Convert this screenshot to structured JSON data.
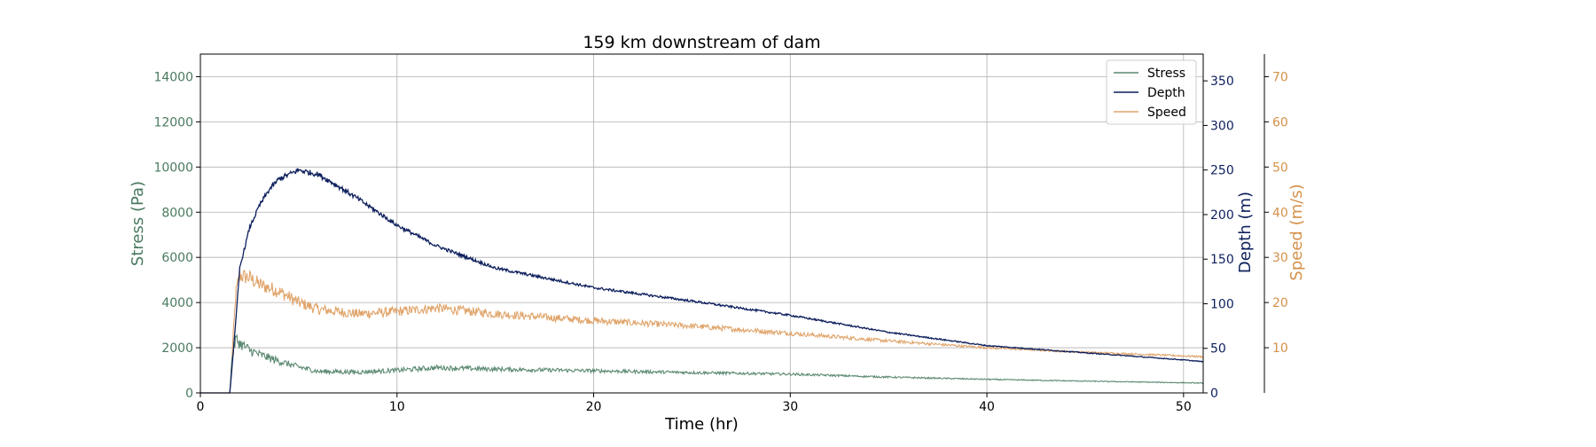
{
  "chart_data": {
    "type": "line",
    "title": "159 km downstream of dam",
    "xlabel": "Time (hr)",
    "xlim": [
      0,
      51
    ],
    "xticks": [
      0,
      10,
      20,
      30,
      40,
      50
    ],
    "grid": true,
    "legend_position": "top-right",
    "axes": {
      "stress": {
        "label": "Stress (Pa)",
        "lim": [
          0,
          15000
        ],
        "ticks": [
          0,
          2000,
          4000,
          6000,
          8000,
          10000,
          12000,
          14000
        ],
        "color": "#4a7a5f",
        "side": "left"
      },
      "depth": {
        "label": "Depth (m)",
        "lim": [
          0,
          380
        ],
        "ticks": [
          0,
          50,
          100,
          150,
          200,
          250,
          300,
          350
        ],
        "color": "#0d1f5c",
        "side": "right"
      },
      "speed": {
        "label": "Speed (m/s)",
        "lim": [
          0,
          75
        ],
        "ticks": [
          10,
          20,
          30,
          40,
          50,
          60,
          70
        ],
        "color": "#d4914a",
        "side": "right-outer"
      }
    },
    "series": [
      {
        "name": "Stress",
        "axis": "stress",
        "color": "#5c8a72",
        "x": [
          0,
          1.5,
          1.6,
          1.8,
          2,
          2.5,
          3,
          4,
          5,
          6,
          8,
          10,
          12,
          15,
          20,
          25,
          30,
          35,
          40,
          45,
          50,
          51
        ],
        "y": [
          0,
          0,
          1500,
          2400,
          2200,
          1900,
          1700,
          1400,
          1150,
          950,
          920,
          1000,
          1120,
          1050,
          980,
          900,
          830,
          700,
          600,
          520,
          450,
          430
        ]
      },
      {
        "name": "Depth",
        "axis": "depth",
        "color": "#0d1f5c",
        "x": [
          0,
          1.5,
          1.8,
          2,
          2.5,
          3,
          3.5,
          4,
          5,
          6,
          7,
          8,
          10,
          12,
          15,
          20,
          25,
          30,
          35,
          40,
          45,
          50,
          51
        ],
        "y": [
          0,
          0,
          80,
          140,
          185,
          210,
          228,
          240,
          250,
          245,
          232,
          218,
          188,
          165,
          140,
          118,
          103,
          87,
          68,
          53,
          45,
          37,
          35
        ]
      },
      {
        "name": "Speed",
        "axis": "speed",
        "color": "#e0a46a",
        "x": [
          0,
          1.5,
          1.8,
          2,
          2.5,
          3,
          4,
          5,
          6,
          8,
          10,
          12,
          15,
          20,
          25,
          30,
          35,
          40,
          45,
          50,
          51
        ],
        "y": [
          0,
          0,
          22,
          26,
          25.5,
          24,
          22.5,
          20,
          18.5,
          17.5,
          18,
          18.8,
          17.5,
          16,
          14.8,
          13.2,
          11.5,
          10,
          9,
          8.2,
          8
        ]
      }
    ]
  }
}
